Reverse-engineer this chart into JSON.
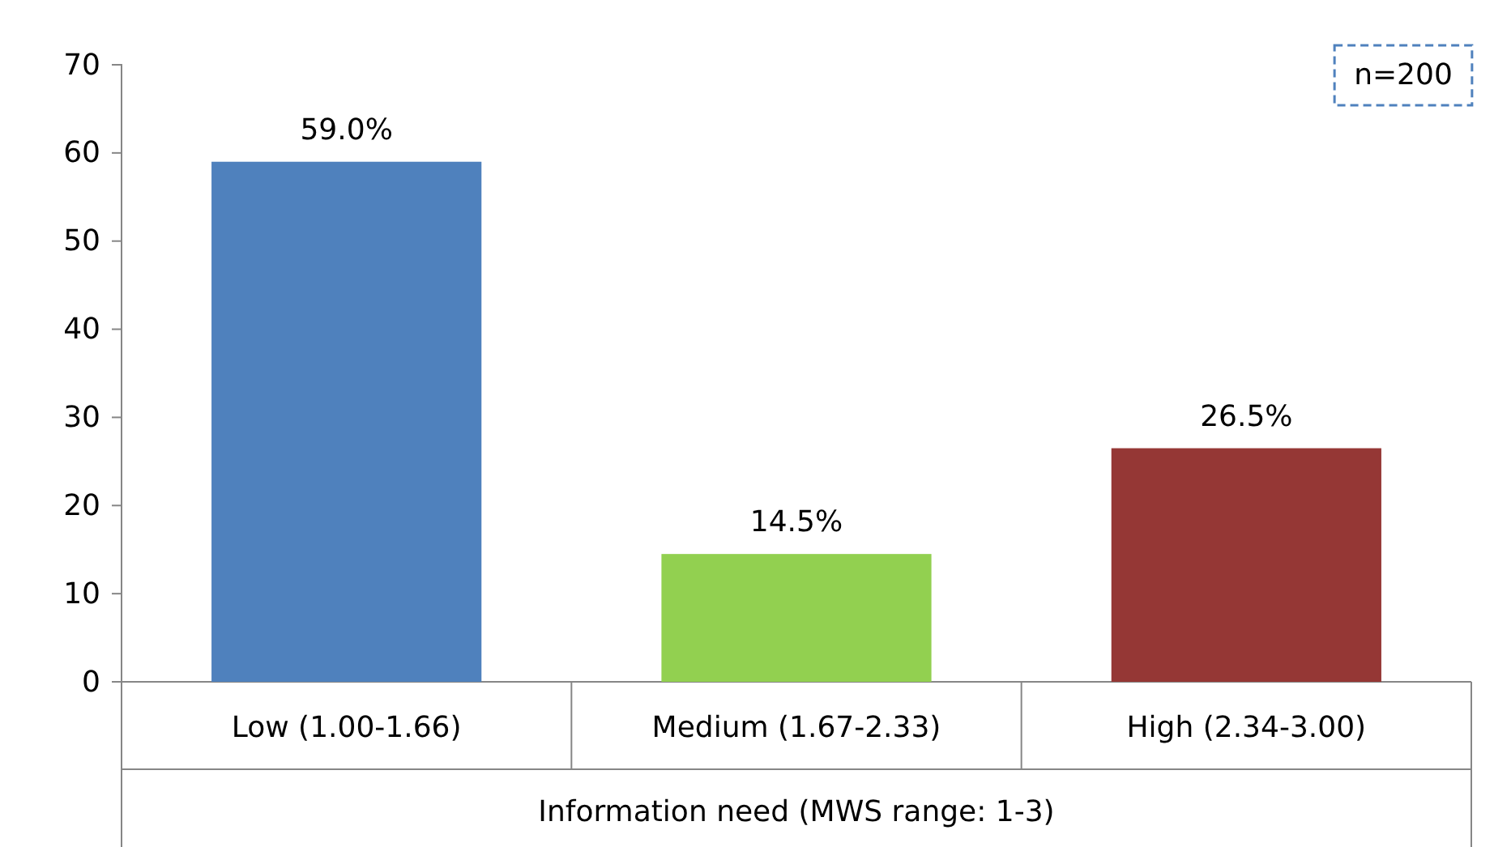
{
  "chart_data": {
    "type": "bar",
    "xlabel": "Information need (MWS range: 1-3)",
    "categories": [
      "Low (1.00-1.66)",
      "Medium (1.67-2.33)",
      "High (2.34-3.00)"
    ],
    "values": [
      59,
      14.5,
      26.5
    ],
    "colors": [
      "#4f81bd",
      "#92d050",
      "#953735"
    ],
    "value_labels": [
      "59.0%",
      "14.5%",
      "26.5%"
    ],
    "ylim": [
      0,
      70
    ],
    "yticks": [
      0,
      10,
      20,
      30,
      40,
      50,
      60,
      70
    ],
    "annotations": [
      "n=200"
    ],
    "grid": false
  }
}
